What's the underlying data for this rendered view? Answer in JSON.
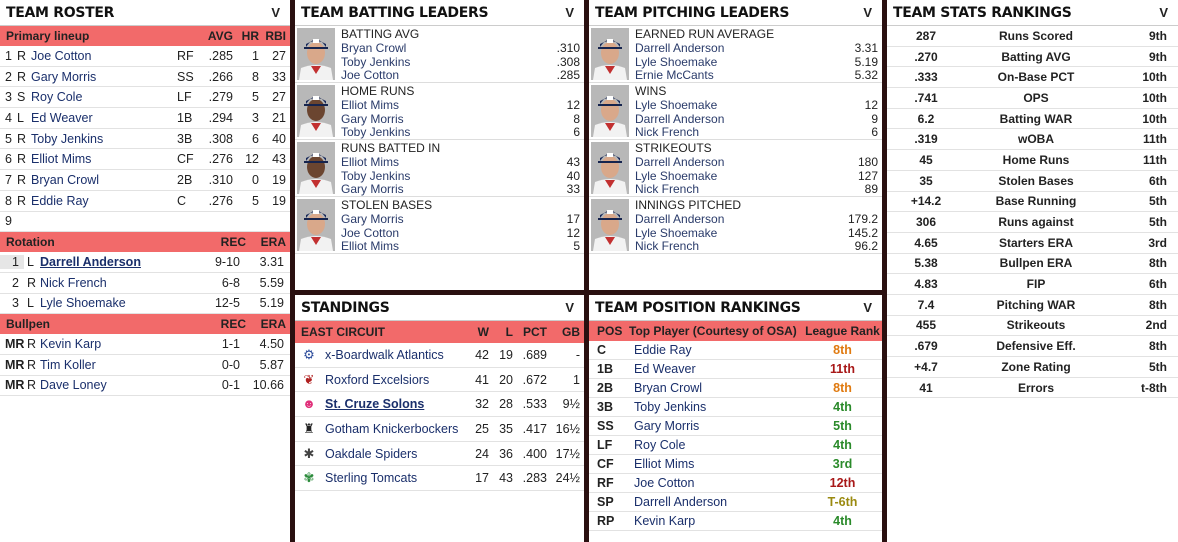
{
  "roster": {
    "title": "TEAM ROSTER",
    "chev": "V",
    "lineup_header": {
      "label": "Primary lineup",
      "avg": "AVG",
      "hr": "HR",
      "rbi": "RBI"
    },
    "lineup": [
      {
        "n": "1",
        "h": "R",
        "name": "Joe Cotton",
        "pos": "RF",
        "avg": ".285",
        "hr": "1",
        "rbi": "27"
      },
      {
        "n": "2",
        "h": "R",
        "name": "Gary Morris",
        "pos": "SS",
        "avg": ".266",
        "hr": "8",
        "rbi": "33"
      },
      {
        "n": "3",
        "h": "S",
        "name": "Roy Cole",
        "pos": "LF",
        "avg": ".279",
        "hr": "5",
        "rbi": "27"
      },
      {
        "n": "4",
        "h": "L",
        "name": "Ed Weaver",
        "pos": "1B",
        "avg": ".294",
        "hr": "3",
        "rbi": "21"
      },
      {
        "n": "5",
        "h": "R",
        "name": "Toby Jenkins",
        "pos": "3B",
        "avg": ".308",
        "hr": "6",
        "rbi": "40"
      },
      {
        "n": "6",
        "h": "R",
        "name": "Elliot Mims",
        "pos": "CF",
        "avg": ".276",
        "hr": "12",
        "rbi": "43"
      },
      {
        "n": "7",
        "h": "R",
        "name": "Bryan Crowl",
        "pos": "2B",
        "avg": ".310",
        "hr": "0",
        "rbi": "19"
      },
      {
        "n": "8",
        "h": "R",
        "name": "Eddie Ray",
        "pos": "C",
        "avg": ".276",
        "hr": "5",
        "rbi": "19"
      },
      {
        "n": "9",
        "h": "",
        "name": "",
        "pos": "",
        "avg": "",
        "hr": "",
        "rbi": ""
      }
    ],
    "rotation_header": {
      "label": "Rotation",
      "rec": "REC",
      "era": "ERA"
    },
    "rotation": [
      {
        "n": "1",
        "h": "L",
        "name": "Darrell Anderson",
        "rec": "9-10",
        "era": "3.31"
      },
      {
        "n": "2",
        "h": "R",
        "name": "Nick French",
        "rec": "6-8",
        "era": "5.59"
      },
      {
        "n": "3",
        "h": "L",
        "name": "Lyle Shoemake",
        "rec": "12-5",
        "era": "5.19"
      }
    ],
    "bullpen_header": {
      "label": "Bullpen",
      "rec": "REC",
      "era": "ERA"
    },
    "bullpen": [
      {
        "n": "MR",
        "h": "R",
        "name": "Kevin Karp",
        "rec": "1-1",
        "era": "4.50"
      },
      {
        "n": "MR",
        "h": "R",
        "name": "Tim Koller",
        "rec": "0-0",
        "era": "5.87"
      },
      {
        "n": "MR",
        "h": "R",
        "name": "Dave Loney",
        "rec": "0-1",
        "era": "10.66"
      }
    ]
  },
  "batting": {
    "title": "TEAM BATTING LEADERS",
    "chev": "V",
    "blocks": [
      {
        "stat": "BATTING AVG",
        "skin": "#d9a88a",
        "rows": [
          {
            "name": "Bryan Crowl",
            "val": ".310"
          },
          {
            "name": "Toby Jenkins",
            "val": ".308"
          },
          {
            "name": "Joe Cotton",
            "val": ".285"
          }
        ]
      },
      {
        "stat": "HOME RUNS",
        "skin": "#6b4530",
        "rows": [
          {
            "name": "Elliot Mims",
            "val": "12"
          },
          {
            "name": "Gary Morris",
            "val": "8"
          },
          {
            "name": "Toby Jenkins",
            "val": "6"
          }
        ]
      },
      {
        "stat": "RUNS BATTED IN",
        "skin": "#6b4530",
        "rows": [
          {
            "name": "Elliot Mims",
            "val": "43"
          },
          {
            "name": "Toby Jenkins",
            "val": "40"
          },
          {
            "name": "Gary Morris",
            "val": "33"
          }
        ]
      },
      {
        "stat": "STOLEN BASES",
        "skin": "#d9a88a",
        "rows": [
          {
            "name": "Gary Morris",
            "val": "17"
          },
          {
            "name": "Joe Cotton",
            "val": "12"
          },
          {
            "name": "Elliot Mims",
            "val": "5"
          }
        ]
      }
    ]
  },
  "pitching": {
    "title": "TEAM PITCHING LEADERS",
    "chev": "V",
    "blocks": [
      {
        "stat": "EARNED RUN AVERAGE",
        "skin": "#d9a88a",
        "rows": [
          {
            "name": "Darrell Anderson",
            "val": "3.31"
          },
          {
            "name": "Lyle Shoemake",
            "val": "5.19"
          },
          {
            "name": "Ernie McCants",
            "val": "5.32"
          }
        ]
      },
      {
        "stat": "WINS",
        "skin": "#d9a88a",
        "rows": [
          {
            "name": "Lyle Shoemake",
            "val": "12"
          },
          {
            "name": "Darrell Anderson",
            "val": "9"
          },
          {
            "name": "Nick French",
            "val": "6"
          }
        ]
      },
      {
        "stat": "STRIKEOUTS",
        "skin": "#d9a88a",
        "rows": [
          {
            "name": "Darrell Anderson",
            "val": "180"
          },
          {
            "name": "Lyle Shoemake",
            "val": "127"
          },
          {
            "name": "Nick French",
            "val": "89"
          }
        ]
      },
      {
        "stat": "INNINGS PITCHED",
        "skin": "#d9a88a",
        "rows": [
          {
            "name": "Darrell Anderson",
            "val": "179.2"
          },
          {
            "name": "Lyle Shoemake",
            "val": "145.2"
          },
          {
            "name": "Nick French",
            "val": "96.2"
          }
        ]
      }
    ]
  },
  "standings": {
    "title": "STANDINGS",
    "chev": "V",
    "header": {
      "div": "EAST CIRCUIT",
      "w": "W",
      "l": "L",
      "pct": "PCT",
      "gb": "GB"
    },
    "teams": [
      {
        "logo": "ship-wheel-icon",
        "glyph": "⚙",
        "color": "#2a4a9a",
        "name": "x-Boardwalk Atlantics",
        "w": "42",
        "l": "19",
        "pct": ".689",
        "gb": "-",
        "link": false
      },
      {
        "logo": "eagle-icon",
        "glyph": "❦",
        "color": "#b02020",
        "name": "Roxford Excelsiors",
        "w": "41",
        "l": "20",
        "pct": ".672",
        "gb": "1",
        "link": false
      },
      {
        "logo": "pig-icon",
        "glyph": "☻",
        "color": "#e0307a",
        "name": "St. Cruze Solons",
        "w": "32",
        "l": "28",
        "pct": ".533",
        "gb": "9½",
        "link": true
      },
      {
        "logo": "walking-man-icon",
        "glyph": "♜",
        "color": "#222",
        "name": "Gotham  Knickerbockers",
        "w": "25",
        "l": "35",
        "pct": ".417",
        "gb": "16½",
        "link": false
      },
      {
        "logo": "spider-icon",
        "glyph": "✱",
        "color": "#444",
        "name": "Oakdale Spiders",
        "w": "24",
        "l": "36",
        "pct": ".400",
        "gb": "17½",
        "link": false
      },
      {
        "logo": "tomcat-icon",
        "glyph": "✾",
        "color": "#2a8a3a",
        "name": "Sterling Tomcats",
        "w": "17",
        "l": "43",
        "pct": ".283",
        "gb": "24½",
        "link": false
      }
    ]
  },
  "positions": {
    "title": "TEAM POSITION RANKINGS",
    "chev": "V",
    "header": {
      "pos": "POS",
      "player": "Top Player (Courtesy of OSA)",
      "rank": "League Rank"
    },
    "rows": [
      {
        "pos": "C",
        "name": "Eddie Ray",
        "rank": "8th",
        "cls": "orange"
      },
      {
        "pos": "1B",
        "name": "Ed Weaver",
        "rank": "11th",
        "cls": "red"
      },
      {
        "pos": "2B",
        "name": "Bryan Crowl",
        "rank": "8th",
        "cls": "orange"
      },
      {
        "pos": "3B",
        "name": "Toby Jenkins",
        "rank": "4th",
        "cls": "green"
      },
      {
        "pos": "SS",
        "name": "Gary Morris",
        "rank": "5th",
        "cls": "green"
      },
      {
        "pos": "LF",
        "name": "Roy Cole",
        "rank": "4th",
        "cls": "green"
      },
      {
        "pos": "CF",
        "name": "Elliot Mims",
        "rank": "3rd",
        "cls": "green"
      },
      {
        "pos": "RF",
        "name": "Joe Cotton",
        "rank": "12th",
        "cls": "red"
      },
      {
        "pos": "SP",
        "name": "Darrell Anderson",
        "rank": "T-6th",
        "cls": "olive"
      },
      {
        "pos": "RP",
        "name": "Kevin Karp",
        "rank": "4th",
        "cls": "green"
      }
    ]
  },
  "rankings": {
    "title": "TEAM STATS RANKINGS",
    "chev": "V",
    "rows": [
      {
        "val": "287",
        "stat": "Runs Scored",
        "rank": "9th"
      },
      {
        "val": ".270",
        "stat": "Batting AVG",
        "rank": "9th"
      },
      {
        "val": ".333",
        "stat": "On-Base PCT",
        "rank": "10th"
      },
      {
        "val": ".741",
        "stat": "OPS",
        "rank": "10th"
      },
      {
        "val": "6.2",
        "stat": "Batting WAR",
        "rank": "10th"
      },
      {
        "val": ".319",
        "stat": "wOBA",
        "rank": "11th"
      },
      {
        "val": "45",
        "stat": "Home Runs",
        "rank": "11th"
      },
      {
        "val": "35",
        "stat": "Stolen Bases",
        "rank": "6th"
      },
      {
        "val": "+14.2",
        "stat": "Base Running",
        "rank": "5th"
      },
      {
        "val": "306",
        "stat": "Runs against",
        "rank": "5th"
      },
      {
        "val": "4.65",
        "stat": "Starters ERA",
        "rank": "3rd"
      },
      {
        "val": "5.38",
        "stat": "Bullpen ERA",
        "rank": "8th"
      },
      {
        "val": "4.83",
        "stat": "FIP",
        "rank": "6th"
      },
      {
        "val": "7.4",
        "stat": "Pitching WAR",
        "rank": "8th"
      },
      {
        "val": "455",
        "stat": "Strikeouts",
        "rank": "2nd"
      },
      {
        "val": ".679",
        "stat": "Defensive Eff.",
        "rank": "8th"
      },
      {
        "val": "+4.7",
        "stat": "Zone Rating",
        "rank": "5th"
      },
      {
        "val": "41",
        "stat": "Errors",
        "rank": "t-8th"
      }
    ]
  }
}
